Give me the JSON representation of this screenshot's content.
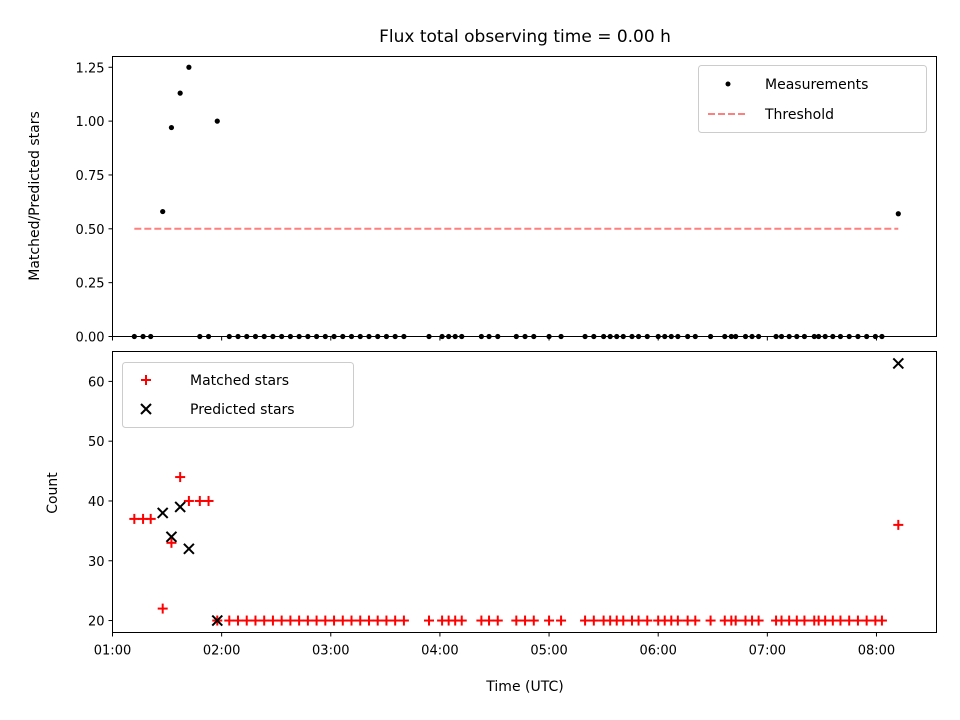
{
  "chart_data": [
    {
      "type": "scatter",
      "title": "Flux total observing time = 0.00 h",
      "ylabel": "Matched/Predicted stars",
      "xlabel": "",
      "ylim": [
        0,
        1.3
      ],
      "yticks": [
        0.0,
        0.25,
        0.5,
        0.75,
        1.0,
        1.25
      ],
      "ytick_labels": [
        "0.00",
        "0.25",
        "0.50",
        "0.75",
        "1.00",
        "1.25"
      ],
      "legend": {
        "position": "top-right",
        "entries": [
          "Measurements",
          "Threshold"
        ]
      },
      "series": [
        {
          "name": "Measurements",
          "marker": "dot",
          "color": "#000000",
          "points": [
            [
              1.2,
              0
            ],
            [
              1.28,
              0
            ],
            [
              1.35,
              0
            ],
            [
              1.46,
              0.58
            ],
            [
              1.54,
              0.97
            ],
            [
              1.62,
              1.13
            ],
            [
              1.7,
              1.25
            ],
            [
              1.8,
              0
            ],
            [
              1.88,
              0
            ],
            [
              1.96,
              1.0
            ],
            [
              2.07,
              0
            ],
            [
              2.15,
              0
            ],
            [
              2.23,
              0
            ],
            [
              2.31,
              0
            ],
            [
              2.39,
              0
            ],
            [
              2.47,
              0
            ],
            [
              2.55,
              0
            ],
            [
              2.63,
              0
            ],
            [
              2.71,
              0
            ],
            [
              2.79,
              0
            ],
            [
              2.87,
              0
            ],
            [
              2.95,
              0
            ],
            [
              3.03,
              0
            ],
            [
              3.11,
              0
            ],
            [
              3.19,
              0
            ],
            [
              3.27,
              0
            ],
            [
              3.35,
              0
            ],
            [
              3.43,
              0
            ],
            [
              3.51,
              0
            ],
            [
              3.59,
              0
            ],
            [
              3.67,
              0
            ],
            [
              3.9,
              0
            ],
            [
              4.02,
              0
            ],
            [
              4.08,
              0
            ],
            [
              4.14,
              0
            ],
            [
              4.2,
              0
            ],
            [
              4.38,
              0
            ],
            [
              4.45,
              0
            ],
            [
              4.53,
              0
            ],
            [
              4.7,
              0
            ],
            [
              4.78,
              0
            ],
            [
              4.86,
              0
            ],
            [
              5.0,
              0
            ],
            [
              5.11,
              0
            ],
            [
              5.33,
              0
            ],
            [
              5.41,
              0
            ],
            [
              5.5,
              0
            ],
            [
              5.56,
              0
            ],
            [
              5.62,
              0
            ],
            [
              5.68,
              0
            ],
            [
              5.76,
              0
            ],
            [
              5.82,
              0
            ],
            [
              5.9,
              0
            ],
            [
              6.0,
              0
            ],
            [
              6.06,
              0
            ],
            [
              6.12,
              0
            ],
            [
              6.18,
              0
            ],
            [
              6.27,
              0
            ],
            [
              6.34,
              0
            ],
            [
              6.48,
              0
            ],
            [
              6.61,
              0
            ],
            [
              6.67,
              0
            ],
            [
              6.71,
              0
            ],
            [
              6.8,
              0
            ],
            [
              6.86,
              0
            ],
            [
              6.92,
              0
            ],
            [
              7.08,
              0
            ],
            [
              7.13,
              0
            ],
            [
              7.2,
              0
            ],
            [
              7.27,
              0
            ],
            [
              7.34,
              0
            ],
            [
              7.43,
              0
            ],
            [
              7.47,
              0
            ],
            [
              7.53,
              0
            ],
            [
              7.6,
              0
            ],
            [
              7.67,
              0
            ],
            [
              7.75,
              0
            ],
            [
              7.83,
              0
            ],
            [
              7.91,
              0
            ],
            [
              7.99,
              0
            ],
            [
              8.05,
              0
            ],
            [
              8.2,
              0.57
            ]
          ]
        },
        {
          "name": "Threshold",
          "marker": "dashed-line",
          "color": "#ff7f7f",
          "x": [
            1.2,
            8.2
          ],
          "y": [
            0.5,
            0.5
          ]
        }
      ]
    },
    {
      "type": "scatter",
      "title": "",
      "ylabel": "Count",
      "xlabel": "Time (UTC)",
      "ylim": [
        18,
        65
      ],
      "yticks": [
        20,
        30,
        40,
        50,
        60
      ],
      "ytick_labels": [
        "20",
        "30",
        "40",
        "50",
        "60"
      ],
      "xlim": [
        1.0,
        8.55
      ],
      "xticks": [
        1,
        2,
        3,
        4,
        5,
        6,
        7,
        8
      ],
      "xtick_labels": [
        "01:00",
        "02:00",
        "03:00",
        "04:00",
        "05:00",
        "06:00",
        "07:00",
        "08:00"
      ],
      "legend": {
        "position": "top-left",
        "entries": [
          "Matched stars",
          "Predicted stars"
        ]
      },
      "series": [
        {
          "name": "Matched stars",
          "marker": "plus",
          "color": "#ff0000",
          "points": [
            [
              1.2,
              37
            ],
            [
              1.28,
              37
            ],
            [
              1.35,
              37
            ],
            [
              1.46,
              22
            ],
            [
              1.54,
              33
            ],
            [
              1.62,
              44
            ],
            [
              1.7,
              40
            ],
            [
              1.8,
              40
            ],
            [
              1.88,
              40
            ],
            [
              1.96,
              20
            ],
            [
              2.07,
              20
            ],
            [
              2.15,
              20
            ],
            [
              2.23,
              20
            ],
            [
              2.31,
              20
            ],
            [
              2.39,
              20
            ],
            [
              2.47,
              20
            ],
            [
              2.55,
              20
            ],
            [
              2.63,
              20
            ],
            [
              2.71,
              20
            ],
            [
              2.79,
              20
            ],
            [
              2.87,
              20
            ],
            [
              2.95,
              20
            ],
            [
              3.03,
              20
            ],
            [
              3.11,
              20
            ],
            [
              3.19,
              20
            ],
            [
              3.27,
              20
            ],
            [
              3.35,
              20
            ],
            [
              3.43,
              20
            ],
            [
              3.51,
              20
            ],
            [
              3.59,
              20
            ],
            [
              3.67,
              20
            ],
            [
              3.9,
              20
            ],
            [
              4.02,
              20
            ],
            [
              4.08,
              20
            ],
            [
              4.14,
              20
            ],
            [
              4.2,
              20
            ],
            [
              4.38,
              20
            ],
            [
              4.45,
              20
            ],
            [
              4.53,
              20
            ],
            [
              4.7,
              20
            ],
            [
              4.78,
              20
            ],
            [
              4.86,
              20
            ],
            [
              5.0,
              20
            ],
            [
              5.11,
              20
            ],
            [
              5.33,
              20
            ],
            [
              5.41,
              20
            ],
            [
              5.5,
              20
            ],
            [
              5.56,
              20
            ],
            [
              5.62,
              20
            ],
            [
              5.68,
              20
            ],
            [
              5.76,
              20
            ],
            [
              5.82,
              20
            ],
            [
              5.9,
              20
            ],
            [
              6.0,
              20
            ],
            [
              6.06,
              20
            ],
            [
              6.12,
              20
            ],
            [
              6.18,
              20
            ],
            [
              6.27,
              20
            ],
            [
              6.34,
              20
            ],
            [
              6.48,
              20
            ],
            [
              6.61,
              20
            ],
            [
              6.67,
              20
            ],
            [
              6.71,
              20
            ],
            [
              6.8,
              20
            ],
            [
              6.86,
              20
            ],
            [
              6.92,
              20
            ],
            [
              7.08,
              20
            ],
            [
              7.13,
              20
            ],
            [
              7.2,
              20
            ],
            [
              7.27,
              20
            ],
            [
              7.34,
              20
            ],
            [
              7.43,
              20
            ],
            [
              7.47,
              20
            ],
            [
              7.53,
              20
            ],
            [
              7.6,
              20
            ],
            [
              7.67,
              20
            ],
            [
              7.75,
              20
            ],
            [
              7.83,
              20
            ],
            [
              7.91,
              20
            ],
            [
              7.99,
              20
            ],
            [
              8.05,
              20
            ],
            [
              8.2,
              36
            ]
          ]
        },
        {
          "name": "Predicted stars",
          "marker": "x",
          "color": "#000000",
          "points": [
            [
              1.46,
              38
            ],
            [
              1.54,
              34
            ],
            [
              1.62,
              39
            ],
            [
              1.7,
              32
            ],
            [
              1.96,
              20
            ],
            [
              8.2,
              63
            ]
          ]
        }
      ]
    }
  ]
}
